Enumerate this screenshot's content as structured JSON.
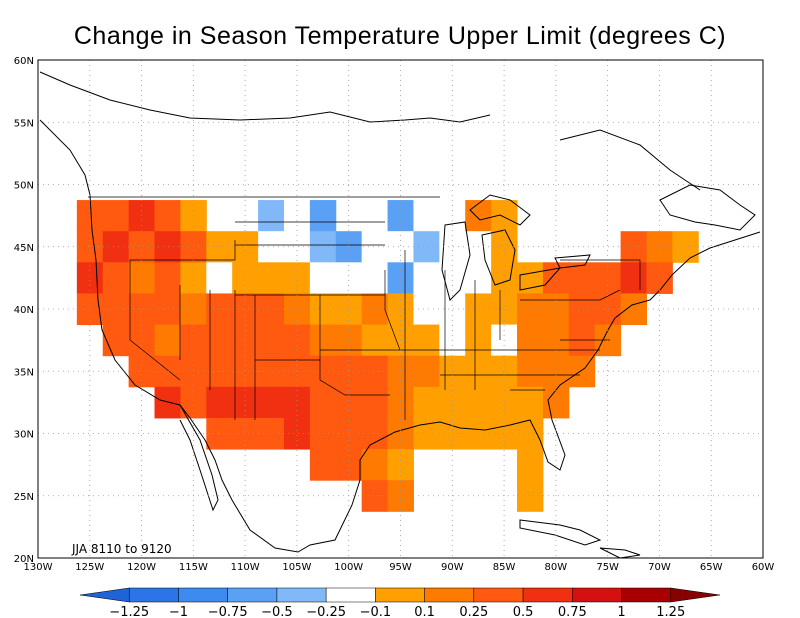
{
  "title": "Change in Season Temperature Upper Limit (degrees C)",
  "period_label": "JJA 8110 to 9120",
  "lon_ticks": [
    "130W",
    "125W",
    "120W",
    "115W",
    "110W",
    "105W",
    "100W",
    "95W",
    "90W",
    "85W",
    "80W",
    "75W",
    "70W",
    "65W",
    "60W"
  ],
  "lat_ticks": [
    "20N",
    "25N",
    "30N",
    "35N",
    "40N",
    "45N",
    "50N",
    "55N",
    "60N"
  ],
  "colorbar": {
    "labels": [
      "-1.25",
      "-1",
      "-0.75",
      "-0.5",
      "-0.25",
      "-0.1",
      "0.1",
      "0.25",
      "0.5",
      "0.75",
      "1",
      "1.25"
    ],
    "colors": [
      "#1f63d6",
      "#2b75e8",
      "#3d8af0",
      "#5aa0f5",
      "#80b8f8",
      "#ffffff",
      "#ffa000",
      "#ff7a00",
      "#ff5a10",
      "#f03010",
      "#d41010",
      "#a80000",
      "#880000"
    ]
  },
  "chart_data": {
    "type": "heatmap",
    "region": "Contiguous United States",
    "season": "JJA",
    "grid_resolution_deg": 2.5,
    "x_range": [
      -130,
      -60
    ],
    "y_range": [
      20,
      60
    ],
    "legend_levels": [
      -1.25,
      -1,
      -0.75,
      -0.5,
      -0.25,
      -0.1,
      0.1,
      0.25,
      0.5,
      0.75,
      1,
      1.25
    ],
    "cells_note": "cells listed as [lon, lat, category]; category index into colorbar.colors",
    "cells": [
      [
        -125,
        47.5,
        8
      ],
      [
        -122.5,
        47.5,
        8
      ],
      [
        -120,
        47.5,
        9
      ],
      [
        -117.5,
        47.5,
        8
      ],
      [
        -115,
        47.5,
        6
      ],
      [
        -110,
        47.5,
        5
      ],
      [
        -107.5,
        47.5,
        4
      ],
      [
        -105,
        47.5,
        5
      ],
      [
        -102.5,
        47.5,
        3
      ],
      [
        -97.5,
        47.5,
        5
      ],
      [
        -95,
        47.5,
        3
      ],
      [
        -92.5,
        47.5,
        5
      ],
      [
        -90,
        47.5,
        5
      ],
      [
        -87.5,
        47.5,
        7
      ],
      [
        -85,
        47.5,
        6
      ],
      [
        -125,
        45,
        8
      ],
      [
        -122.5,
        45,
        9
      ],
      [
        -120,
        45,
        8
      ],
      [
        -117.5,
        45,
        9
      ],
      [
        -115,
        45,
        8
      ],
      [
        -112.5,
        45,
        6
      ],
      [
        -110,
        45,
        6
      ],
      [
        -107.5,
        45,
        5
      ],
      [
        -102.5,
        45,
        4
      ],
      [
        -100,
        45,
        3
      ],
      [
        -97.5,
        45,
        5
      ],
      [
        -95,
        45,
        5
      ],
      [
        -92.5,
        45,
        4
      ],
      [
        -90,
        45,
        5
      ],
      [
        -87.5,
        45,
        5
      ],
      [
        -85,
        45,
        6
      ],
      [
        -72.5,
        45,
        8
      ],
      [
        -70,
        45,
        7
      ],
      [
        -67.5,
        45,
        6
      ],
      [
        -125,
        42.5,
        9
      ],
      [
        -122.5,
        42.5,
        8
      ],
      [
        -120,
        42.5,
        7
      ],
      [
        -117.5,
        42.5,
        8
      ],
      [
        -115,
        42.5,
        6
      ],
      [
        -112.5,
        42.5,
        5
      ],
      [
        -110,
        42.5,
        6
      ],
      [
        -107.5,
        42.5,
        6
      ],
      [
        -105,
        42.5,
        6
      ],
      [
        -102.5,
        42.5,
        5
      ],
      [
        -100,
        42.5,
        5
      ],
      [
        -97.5,
        42.5,
        5
      ],
      [
        -95,
        42.5,
        3
      ],
      [
        -92.5,
        42.5,
        5
      ],
      [
        -90,
        42.5,
        5
      ],
      [
        -87.5,
        42.5,
        5
      ],
      [
        -85,
        42.5,
        6
      ],
      [
        -82.5,
        42.5,
        6
      ],
      [
        -80,
        42.5,
        8
      ],
      [
        -77.5,
        42.5,
        8
      ],
      [
        -75,
        42.5,
        8
      ],
      [
        -72.5,
        42.5,
        9
      ],
      [
        -70,
        42.5,
        8
      ],
      [
        -125,
        40,
        8
      ],
      [
        -122.5,
        40,
        8
      ],
      [
        -120,
        40,
        8
      ],
      [
        -117.5,
        40,
        8
      ],
      [
        -115,
        40,
        7
      ],
      [
        -112.5,
        40,
        8
      ],
      [
        -110,
        40,
        8
      ],
      [
        -107.5,
        40,
        8
      ],
      [
        -105,
        40,
        7
      ],
      [
        -102.5,
        40,
        6
      ],
      [
        -100,
        40,
        6
      ],
      [
        -97.5,
        40,
        7
      ],
      [
        -95,
        40,
        6
      ],
      [
        -92.5,
        40,
        5
      ],
      [
        -90,
        40,
        5
      ],
      [
        -87.5,
        40,
        6
      ],
      [
        -85,
        40,
        6
      ],
      [
        -82.5,
        40,
        7
      ],
      [
        -80,
        40,
        7
      ],
      [
        -77.5,
        40,
        8
      ],
      [
        -75,
        40,
        8
      ],
      [
        -72.5,
        40,
        7
      ],
      [
        -122.5,
        37.5,
        8
      ],
      [
        -120,
        37.5,
        8
      ],
      [
        -117.5,
        37.5,
        7
      ],
      [
        -115,
        37.5,
        8
      ],
      [
        -112.5,
        37.5,
        8
      ],
      [
        -110,
        37.5,
        8
      ],
      [
        -107.5,
        37.5,
        8
      ],
      [
        -105,
        37.5,
        8
      ],
      [
        -102.5,
        37.5,
        7
      ],
      [
        -100,
        37.5,
        7
      ],
      [
        -97.5,
        37.5,
        6
      ],
      [
        -95,
        37.5,
        6
      ],
      [
        -92.5,
        37.5,
        6
      ],
      [
        -90,
        37.5,
        5
      ],
      [
        -87.5,
        37.5,
        6
      ],
      [
        -85,
        37.5,
        5
      ],
      [
        -82.5,
        37.5,
        7
      ],
      [
        -80,
        37.5,
        7
      ],
      [
        -77.5,
        37.5,
        8
      ],
      [
        -75,
        37.5,
        7
      ],
      [
        -120,
        35,
        8
      ],
      [
        -117.5,
        35,
        8
      ],
      [
        -115,
        35,
        8
      ],
      [
        -112.5,
        35,
        8
      ],
      [
        -110,
        35,
        8
      ],
      [
        -107.5,
        35,
        8
      ],
      [
        -105,
        35,
        8
      ],
      [
        -102.5,
        35,
        8
      ],
      [
        -100,
        35,
        8
      ],
      [
        -97.5,
        35,
        8
      ],
      [
        -95,
        35,
        7
      ],
      [
        -92.5,
        35,
        7
      ],
      [
        -90,
        35,
        6
      ],
      [
        -87.5,
        35,
        6
      ],
      [
        -85,
        35,
        6
      ],
      [
        -82.5,
        35,
        7
      ],
      [
        -80,
        35,
        7
      ],
      [
        -77.5,
        35,
        7
      ],
      [
        -117.5,
        32.5,
        9
      ],
      [
        -115,
        32.5,
        8
      ],
      [
        -112.5,
        32.5,
        9
      ],
      [
        -110,
        32.5,
        9
      ],
      [
        -107.5,
        32.5,
        9
      ],
      [
        -105,
        32.5,
        9
      ],
      [
        -102.5,
        32.5,
        8
      ],
      [
        -100,
        32.5,
        8
      ],
      [
        -97.5,
        32.5,
        8
      ],
      [
        -95,
        32.5,
        7
      ],
      [
        -92.5,
        32.5,
        6
      ],
      [
        -90,
        32.5,
        6
      ],
      [
        -87.5,
        32.5,
        6
      ],
      [
        -85,
        32.5,
        6
      ],
      [
        -82.5,
        32.5,
        6
      ],
      [
        -80,
        32.5,
        7
      ],
      [
        -112.5,
        30,
        8
      ],
      [
        -110,
        30,
        8
      ],
      [
        -107.5,
        30,
        8
      ],
      [
        -105,
        30,
        9
      ],
      [
        -102.5,
        30,
        8
      ],
      [
        -100,
        30,
        8
      ],
      [
        -97.5,
        30,
        8
      ],
      [
        -95,
        30,
        7
      ],
      [
        -92.5,
        30,
        6
      ],
      [
        -90,
        30,
        6
      ],
      [
        -87.5,
        30,
        6
      ],
      [
        -85,
        30,
        6
      ],
      [
        -82.5,
        30,
        6
      ],
      [
        -102.5,
        27.5,
        8
      ],
      [
        -100,
        27.5,
        8
      ],
      [
        -97.5,
        27.5,
        7
      ],
      [
        -95,
        27.5,
        6
      ],
      [
        -82.5,
        27.5,
        6
      ],
      [
        -97.5,
        25,
        8
      ],
      [
        -95,
        25,
        7
      ],
      [
        -82.5,
        25,
        6
      ]
    ]
  }
}
